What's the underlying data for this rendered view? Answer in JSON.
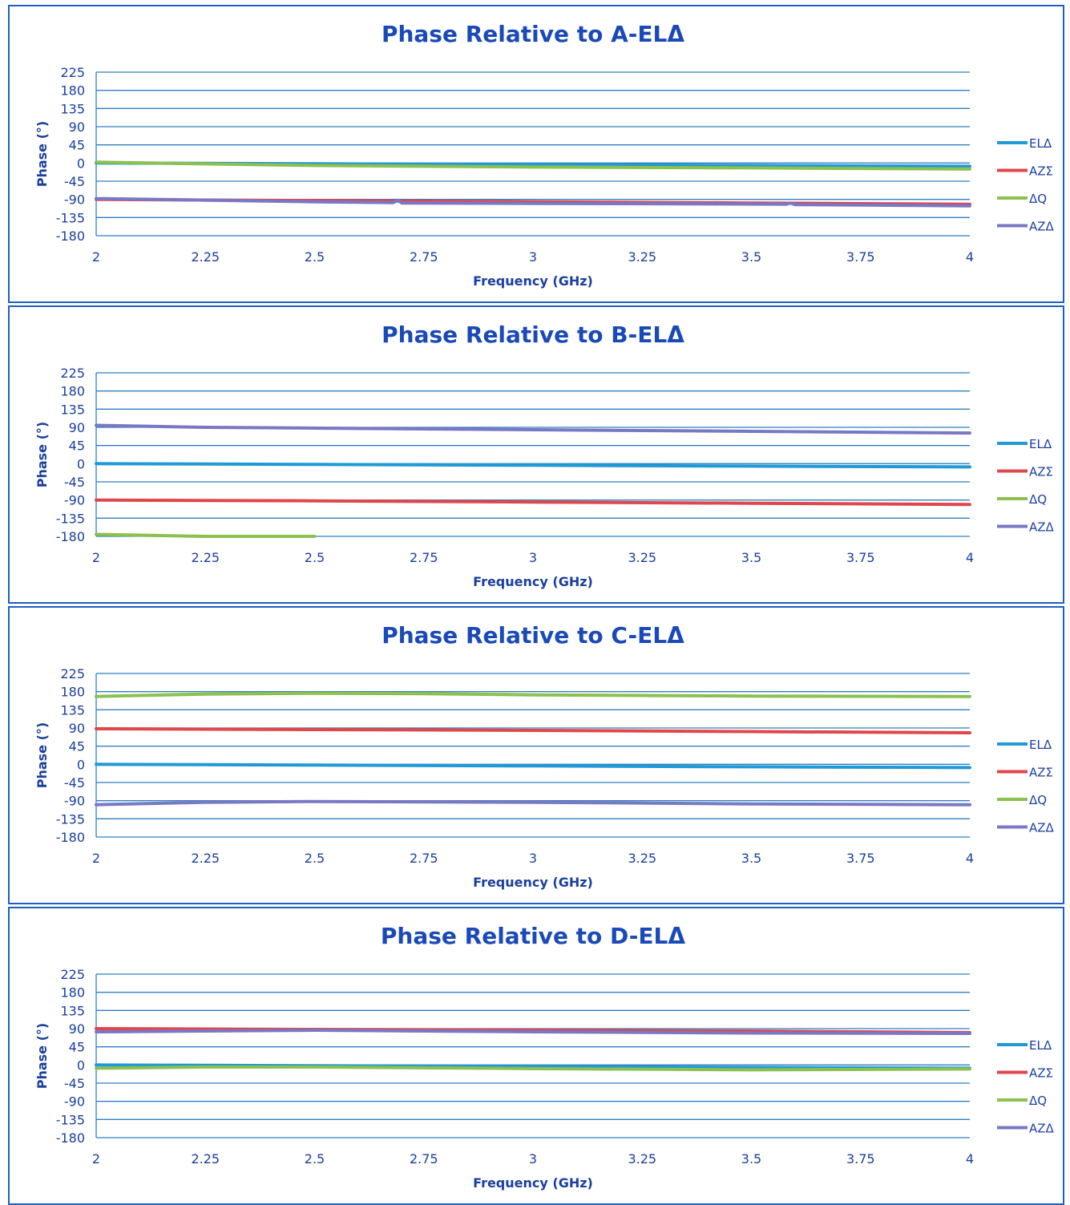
{
  "colors": {
    "frame": "#1f5fbf",
    "text": "#1a3f9e",
    "title": "#1a49b8",
    "grid": "#2f7fc1",
    "ELΔ": "#1f9ad6",
    "AZΣ": "#e0474c",
    "ΔQ": "#8cc04f",
    "AZΔ": "#7a78c4"
  },
  "chart_data": [
    {
      "type": "line",
      "title": "Phase Relative to A-ELΔ",
      "xlabel": "Frequency (GHz)",
      "ylabel": "Phase (°)",
      "xlim": [
        2,
        4
      ],
      "ylim": [
        -180,
        225
      ],
      "xticks": [
        "2",
        "2.25",
        "2.5",
        "2.75",
        "3",
        "3.25",
        "3.5",
        "3.75",
        "4"
      ],
      "yticks": [
        "225",
        "180",
        "135",
        "90",
        "45",
        "0",
        "-45",
        "-90",
        "-135",
        "-180"
      ],
      "grid": true,
      "legend_position": "right",
      "series": [
        {
          "name": "ELΔ",
          "x": [
            2,
            2.5,
            3,
            3.5,
            4
          ],
          "y": [
            0,
            -2,
            -4,
            -6,
            -8
          ]
        },
        {
          "name": "AZΣ",
          "x": [
            2,
            2.5,
            3,
            3.5,
            4
          ],
          "y": [
            -90,
            -93,
            -96,
            -99,
            -102
          ]
        },
        {
          "name": "ΔQ",
          "x": [
            2,
            2.5,
            3,
            3.5,
            4
          ],
          "y": [
            2,
            -6,
            -10,
            -12,
            -15
          ]
        },
        {
          "name": "AZΔ",
          "x": [
            2,
            2.5,
            2.68,
            2.69,
            2.7,
            3,
            3.58,
            3.59,
            3.6,
            4
          ],
          "y": [
            -88,
            -96,
            -98,
            -92,
            -99,
            -100,
            -102,
            -99,
            -103,
            -106
          ]
        }
      ]
    },
    {
      "type": "line",
      "title": "Phase Relative to B-ELΔ",
      "xlabel": "Frequency (GHz)",
      "ylabel": "Phase (°)",
      "xlim": [
        2,
        4
      ],
      "ylim": [
        -180,
        225
      ],
      "xticks": [
        "2",
        "2.25",
        "2.5",
        "2.75",
        "3",
        "3.25",
        "3.5",
        "3.75",
        "4"
      ],
      "yticks": [
        "225",
        "180",
        "135",
        "90",
        "45",
        "0",
        "-45",
        "-90",
        "-135",
        "-180"
      ],
      "grid": true,
      "legend_position": "right",
      "series": [
        {
          "name": "ELΔ",
          "x": [
            2,
            2.5,
            3,
            3.5,
            4
          ],
          "y": [
            0,
            -2,
            -4,
            -6,
            -8
          ]
        },
        {
          "name": "AZΣ",
          "x": [
            2,
            2.5,
            3,
            3.5,
            4
          ],
          "y": [
            -90,
            -92,
            -95,
            -98,
            -101
          ]
        },
        {
          "name": "ΔQ",
          "x": [
            2,
            2.25,
            2.5
          ],
          "y": [
            -175,
            -180,
            -180
          ]
        },
        {
          "name": "AZΔ",
          "x": [
            2,
            2.25,
            2.5,
            3,
            3.5,
            4
          ],
          "y": [
            95,
            90,
            88,
            84,
            80,
            76
          ]
        }
      ]
    },
    {
      "type": "line",
      "title": "Phase Relative to C-ELΔ",
      "xlabel": "Frequency (GHz)",
      "ylabel": "Phase (°)",
      "xlim": [
        2,
        4
      ],
      "ylim": [
        -180,
        225
      ],
      "xticks": [
        "2",
        "2.25",
        "2.5",
        "2.75",
        "3",
        "3.25",
        "3.5",
        "3.75",
        "4"
      ],
      "yticks": [
        "225",
        "180",
        "135",
        "90",
        "45",
        "0",
        "-45",
        "-90",
        "-135",
        "-180"
      ],
      "grid": true,
      "legend_position": "right",
      "series": [
        {
          "name": "ELΔ",
          "x": [
            2,
            2.5,
            3,
            3.5,
            4
          ],
          "y": [
            0,
            -2,
            -4,
            -6,
            -8
          ]
        },
        {
          "name": "AZΣ",
          "x": [
            2,
            2.5,
            3,
            3.5,
            4
          ],
          "y": [
            88,
            86,
            84,
            81,
            78
          ]
        },
        {
          "name": "ΔQ",
          "x": [
            2,
            2.25,
            2.5,
            2.75,
            3,
            3.5,
            4
          ],
          "y": [
            168,
            174,
            176,
            175,
            172,
            169,
            168
          ]
        },
        {
          "name": "AZΔ",
          "x": [
            2,
            2.25,
            2.5,
            3,
            3.5,
            4
          ],
          "y": [
            -100,
            -94,
            -92,
            -94,
            -98,
            -100
          ]
        }
      ]
    },
    {
      "type": "line",
      "title": "Phase Relative to D-ELΔ",
      "xlabel": "Frequency (GHz)",
      "ylabel": "Phase (°)",
      "xlim": [
        2,
        4
      ],
      "ylim": [
        -180,
        225
      ],
      "xticks": [
        "2",
        "2.25",
        "2.5",
        "2.75",
        "3",
        "3.25",
        "3.5",
        "3.75",
        "4"
      ],
      "yticks": [
        "225",
        "180",
        "135",
        "90",
        "45",
        "0",
        "-45",
        "-90",
        "-135",
        "-180"
      ],
      "grid": true,
      "legend_position": "right",
      "series": [
        {
          "name": "ELΔ",
          "x": [
            2,
            2.5,
            3,
            3.5,
            4
          ],
          "y": [
            0,
            -2,
            -4,
            -6,
            -8
          ]
        },
        {
          "name": "AZΣ",
          "x": [
            2,
            2.5,
            3,
            3.5,
            4
          ],
          "y": [
            90,
            88,
            86,
            84,
            80
          ]
        },
        {
          "name": "ΔQ",
          "x": [
            2,
            2.25,
            2.5,
            3,
            3.5,
            4
          ],
          "y": [
            -8,
            -5,
            -5,
            -9,
            -12,
            -10
          ]
        },
        {
          "name": "AZΔ",
          "x": [
            2,
            2.5,
            3,
            3.5,
            4
          ],
          "y": [
            82,
            86,
            82,
            79,
            78
          ]
        }
      ]
    }
  ]
}
